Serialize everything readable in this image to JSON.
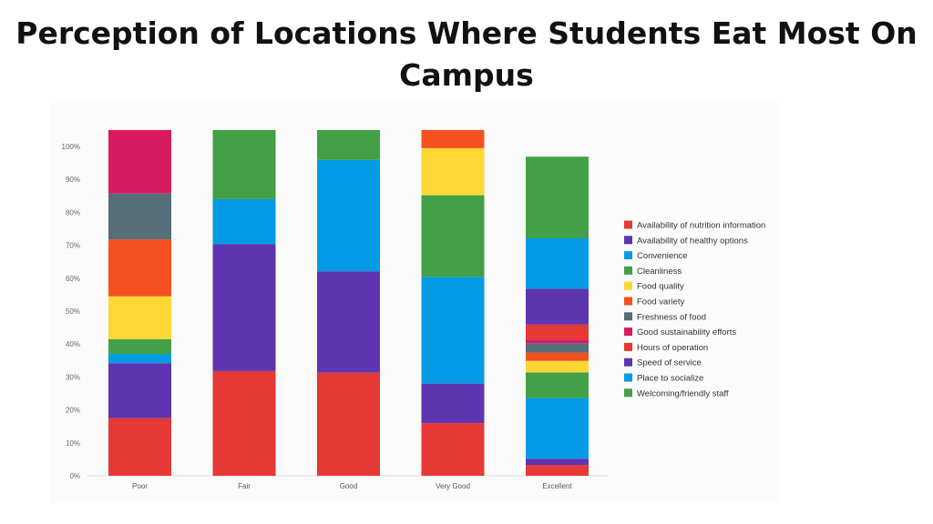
{
  "slide": {
    "title": "Perception of Locations Where Students Eat Most On Campus"
  },
  "chart_data": {
    "type": "bar",
    "stacked": true,
    "title": "Perception of Locations Where Students Eat Most On Campus",
    "xlabel": "",
    "ylabel": "",
    "ylim": [
      0,
      100
    ],
    "y_ticks": [
      "0%",
      "10%",
      "20%",
      "30%",
      "40%",
      "50%",
      "60%",
      "70%",
      "80%",
      "90%",
      "100%"
    ],
    "categories": [
      "Poor",
      "Fair",
      "Good",
      "Very Good",
      "Excellent"
    ],
    "grid": false,
    "legend_position": "right",
    "series": [
      {
        "name": "Availability of nutrition information",
        "color": "#e53935",
        "values": [
          17.5,
          31.8,
          31.3,
          16.0,
          3.3
        ]
      },
      {
        "name": "Availability of healthy options",
        "color": "#5e35b1",
        "values": [
          16.7,
          38.6,
          30.8,
          12.0,
          1.9
        ]
      },
      {
        "name": "Convenience",
        "color": "#039be5",
        "values": [
          2.8,
          13.6,
          33.8,
          32.4,
          18.4
        ]
      },
      {
        "name": "Cleanliness",
        "color": "#43a047",
        "values": [
          4.5,
          21.0,
          9.1,
          24.8,
          7.8
        ]
      },
      {
        "name": "Food quality",
        "color": "#fdd835",
        "values": [
          13.0,
          0,
          0,
          14.3,
          3.5
        ]
      },
      {
        "name": "Food variety",
        "color": "#f4511e",
        "values": [
          17.3,
          0,
          0,
          5.5,
          2.5
        ]
      },
      {
        "name": "Freshness of food",
        "color": "#546e7a",
        "values": [
          13.9,
          0,
          0,
          0,
          2.9
        ]
      },
      {
        "name": "Good sustainability efforts",
        "color": "#d81b60",
        "values": [
          19.3,
          0,
          0,
          0,
          1.1
        ]
      },
      {
        "name": "Hours of operation",
        "color": "#e53935",
        "values": [
          0,
          0,
          0,
          0,
          4.5
        ]
      },
      {
        "name": "Speed of service",
        "color": "#5e35b1",
        "values": [
          0,
          0,
          0,
          0,
          10.9
        ]
      },
      {
        "name": "Place to socialize",
        "color": "#039be5",
        "values": [
          0,
          0,
          0,
          0,
          15.3
        ]
      },
      {
        "name": "Welcoming/friendly staff",
        "color": "#43a047",
        "values": [
          0,
          0,
          0,
          0,
          24.8
        ]
      }
    ]
  }
}
